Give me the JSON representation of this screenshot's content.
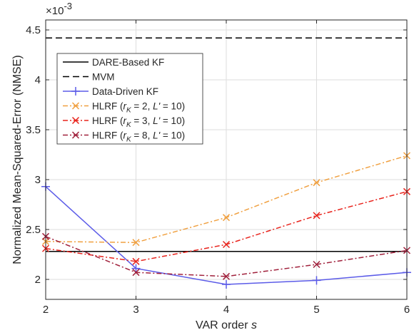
{
  "chart_data": {
    "type": "line",
    "xlabel": "VAR order",
    "xlabel_symbol": "s",
    "ylabel": "Normalized Mean-Squared-Error (NMSE)",
    "y_exponent": "×10",
    "y_exponent_power": "-3",
    "xlim": [
      2,
      6
    ],
    "ylim": [
      1.8,
      4.6
    ],
    "grid": true,
    "legend_position": "top-left",
    "x_ticks": [
      "2",
      "3",
      "4",
      "5",
      "6"
    ],
    "y_ticks": [
      "2",
      "2.5",
      "3",
      "3.5",
      "4",
      "4.5"
    ],
    "x": [
      2,
      3,
      4,
      5,
      6
    ],
    "series": [
      {
        "name": "DARE-Based KF",
        "legend": {
          "pre": "DARE-Based KF"
        },
        "values": [
          2.28,
          2.28,
          2.28,
          2.28,
          2.28
        ],
        "color": "#000000",
        "dash": "solid",
        "marker": "none"
      },
      {
        "name": "MVM",
        "legend": {
          "pre": "MVM"
        },
        "values": [
          4.42,
          4.42,
          4.42,
          4.42,
          4.42
        ],
        "color": "#000000",
        "dash": "dashed",
        "marker": "none"
      },
      {
        "name": "Data-Driven KF",
        "legend": {
          "pre": "Data-Driven KF"
        },
        "values": [
          2.93,
          2.11,
          1.95,
          1.99,
          2.07
        ],
        "color": "#5b5be8",
        "dash": "solid",
        "marker": "plus"
      },
      {
        "name": "HLRF (rK = 2, L' = 10)",
        "legend": {
          "pre": "HLRF (",
          "r": "r",
          "sub": "K",
          "mid": " = 2, ",
          "l": "L'",
          "post": " = 10)"
        },
        "values": [
          2.38,
          2.37,
          2.62,
          2.97,
          3.24
        ],
        "color": "#f0a040",
        "dash": "dashdot",
        "marker": "x"
      },
      {
        "name": "HLRF (rK = 3, L' = 10)",
        "legend": {
          "pre": "HLRF (",
          "r": "r",
          "sub": "K",
          "mid": " = 3, ",
          "l": "L'",
          "post": " = 10)"
        },
        "values": [
          2.31,
          2.18,
          2.35,
          2.64,
          2.88
        ],
        "color": "#e8231c",
        "dash": "dashdot",
        "marker": "x"
      },
      {
        "name": "HLRF (rK = 8, L' = 10)",
        "legend": {
          "pre": "HLRF (",
          "r": "r",
          "sub": "K",
          "mid": " = 8, ",
          "l": "L'",
          "post": " = 10)"
        },
        "values": [
          2.43,
          2.07,
          2.03,
          2.15,
          2.29
        ],
        "color": "#a0213c",
        "dash": "dashdot",
        "marker": "x"
      }
    ]
  }
}
